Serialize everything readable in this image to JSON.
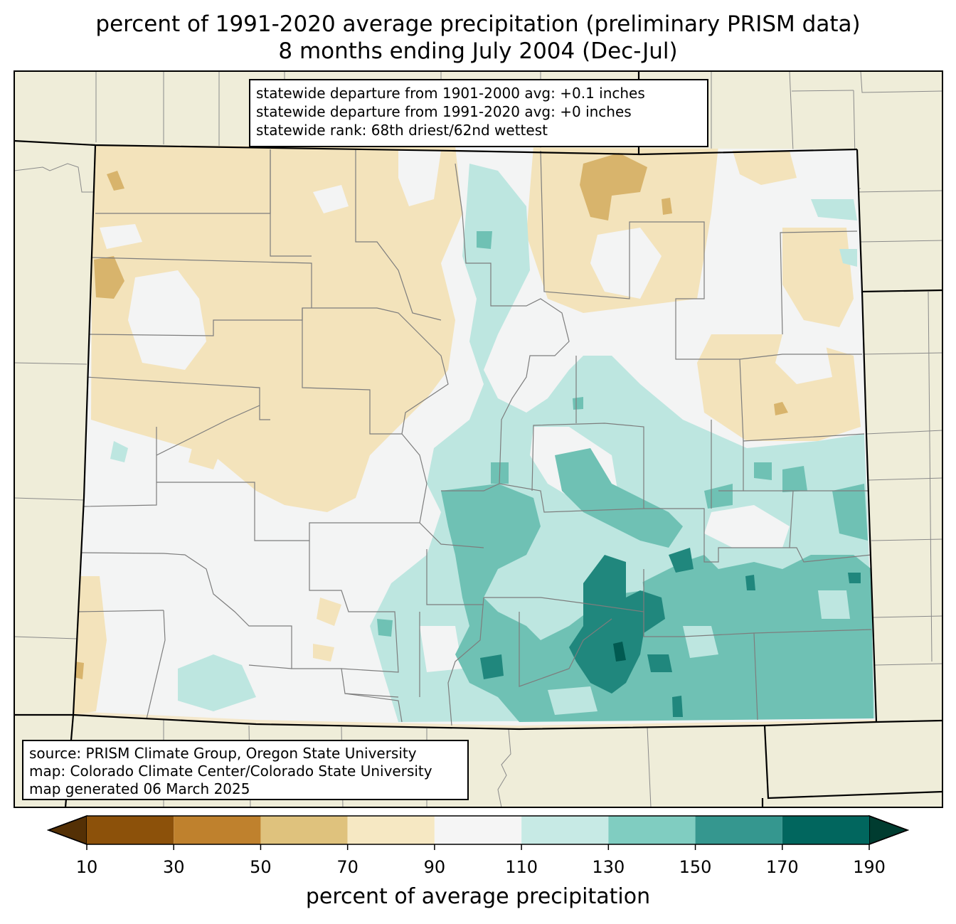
{
  "title": {
    "line1": "percent of 1991-2020 average precipitation (preliminary PRISM data)",
    "line2": "8 months ending July 2004 (Dec-Jul)"
  },
  "stats": {
    "line1": "statewide departure from 1901-2000 avg: +0.1 inches",
    "line2": "statewide departure from 1991-2020 avg: +0 inches",
    "line3": "statewide rank: 68th driest/62nd wettest"
  },
  "source": {
    "line1": "source: PRISM Climate Group, Oregon State University",
    "line2": "map: Colorado Climate Center/Colorado State University",
    "line3": "map generated 06 March 2025"
  },
  "colorbar": {
    "label": "percent of average precipitation",
    "ticks": [
      "10",
      "30",
      "50",
      "70",
      "90",
      "110",
      "130",
      "150",
      "170",
      "190"
    ],
    "under_color": "#543005",
    "over_color": "#003c30",
    "colors": [
      "#8c510a",
      "#bf812d",
      "#dfc27d",
      "#f6e8c3",
      "#f5f5f5",
      "#c7eae5",
      "#80cdc1",
      "#35978f",
      "#01665e"
    ]
  },
  "map_colors": {
    "background": "#efedd9",
    "c30_50": "#a9712a",
    "c50_70": "#d8b46c",
    "c70_90": "#f3e3bb",
    "c90_110": "#f3f4f4",
    "c110_130": "#bde6e0",
    "c130_150": "#6fc1b4",
    "c150_170": "#20877d",
    "c170_190": "#015a51"
  }
}
